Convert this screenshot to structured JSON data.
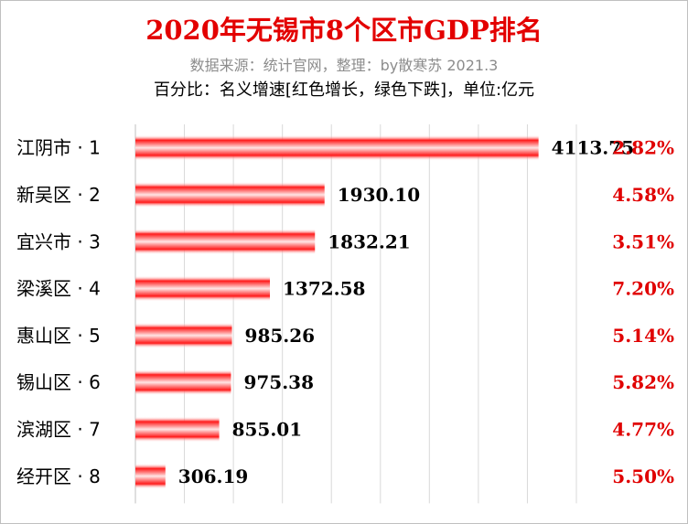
{
  "title": "2020年无锡市8个区市GDP排名",
  "subtitle": "数据来源：统计官网，整理：by散寒苏 2021.3",
  "note": "百分比：名义增速[红色增长，绿色下跌]，单位:亿元",
  "colors": {
    "title": "#e30000",
    "bar_edge": "#ff1a1a",
    "bar_center": "#ffffff",
    "growth_positive": "#e00000",
    "gridline": "#d9d9d9"
  },
  "chart_data": {
    "type": "bar",
    "orientation": "horizontal",
    "unit": "亿元",
    "categories": [
      "江阴市 · 1",
      "新吴区 · 2",
      "宜兴市 · 3",
      "梁溪区 · 4",
      "惠山区 · 5",
      "锡山区 · 6",
      "滨湖区 · 7",
      "经开区 · 8"
    ],
    "values": [
      4113.75,
      1930.1,
      1832.21,
      1372.58,
      985.26,
      975.38,
      855.01,
      306.19
    ],
    "value_labels": [
      "4113.75",
      "1930.10",
      "1832.21",
      "1372.58",
      "985.26",
      "975.38",
      "855.01",
      "306.19"
    ],
    "growth_labels": [
      "2.82%",
      "4.58%",
      "3.51%",
      "7.20%",
      "5.14%",
      "5.82%",
      "4.77%",
      "5.50%"
    ],
    "xlim": [
      0,
      4500
    ],
    "grid": true,
    "legend": "none"
  }
}
